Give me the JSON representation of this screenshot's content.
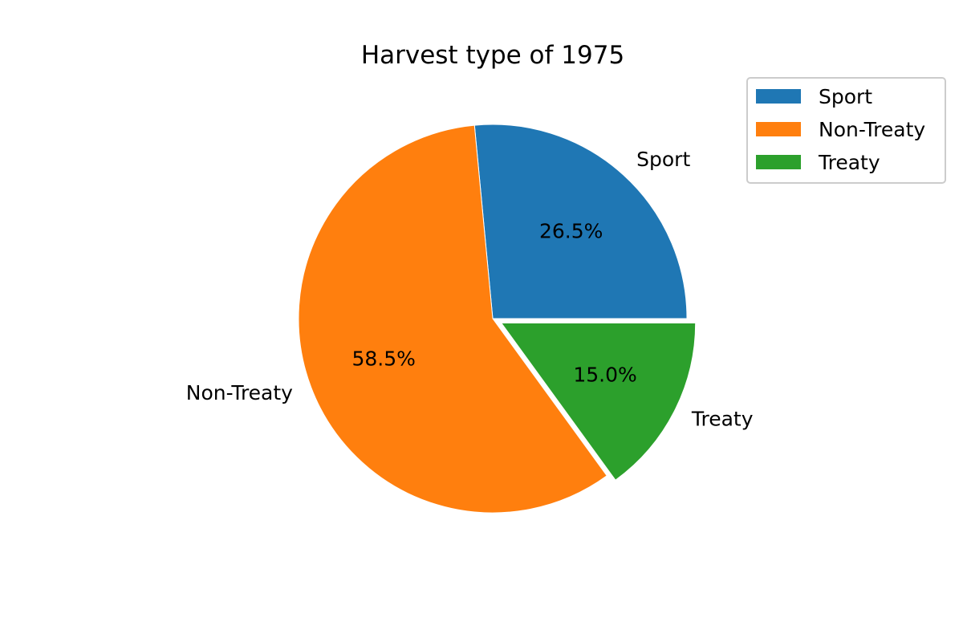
{
  "chart_data": {
    "type": "pie",
    "title": "Harvest type of 1975",
    "categories": [
      "Sport",
      "Non-Treaty",
      "Treaty"
    ],
    "values": [
      26.5,
      58.5,
      15.0
    ],
    "percent_labels": [
      "26.5%",
      "58.5%",
      "15.0%"
    ],
    "colors": [
      "#1f77b4",
      "#ff7f0e",
      "#2ca02c"
    ],
    "exploded": [
      "Treaty"
    ],
    "start_angle_deg": 0,
    "direction": "counterclockwise",
    "legend": {
      "entries": [
        "Sport",
        "Non-Treaty",
        "Treaty"
      ],
      "placement": "top-right"
    }
  }
}
